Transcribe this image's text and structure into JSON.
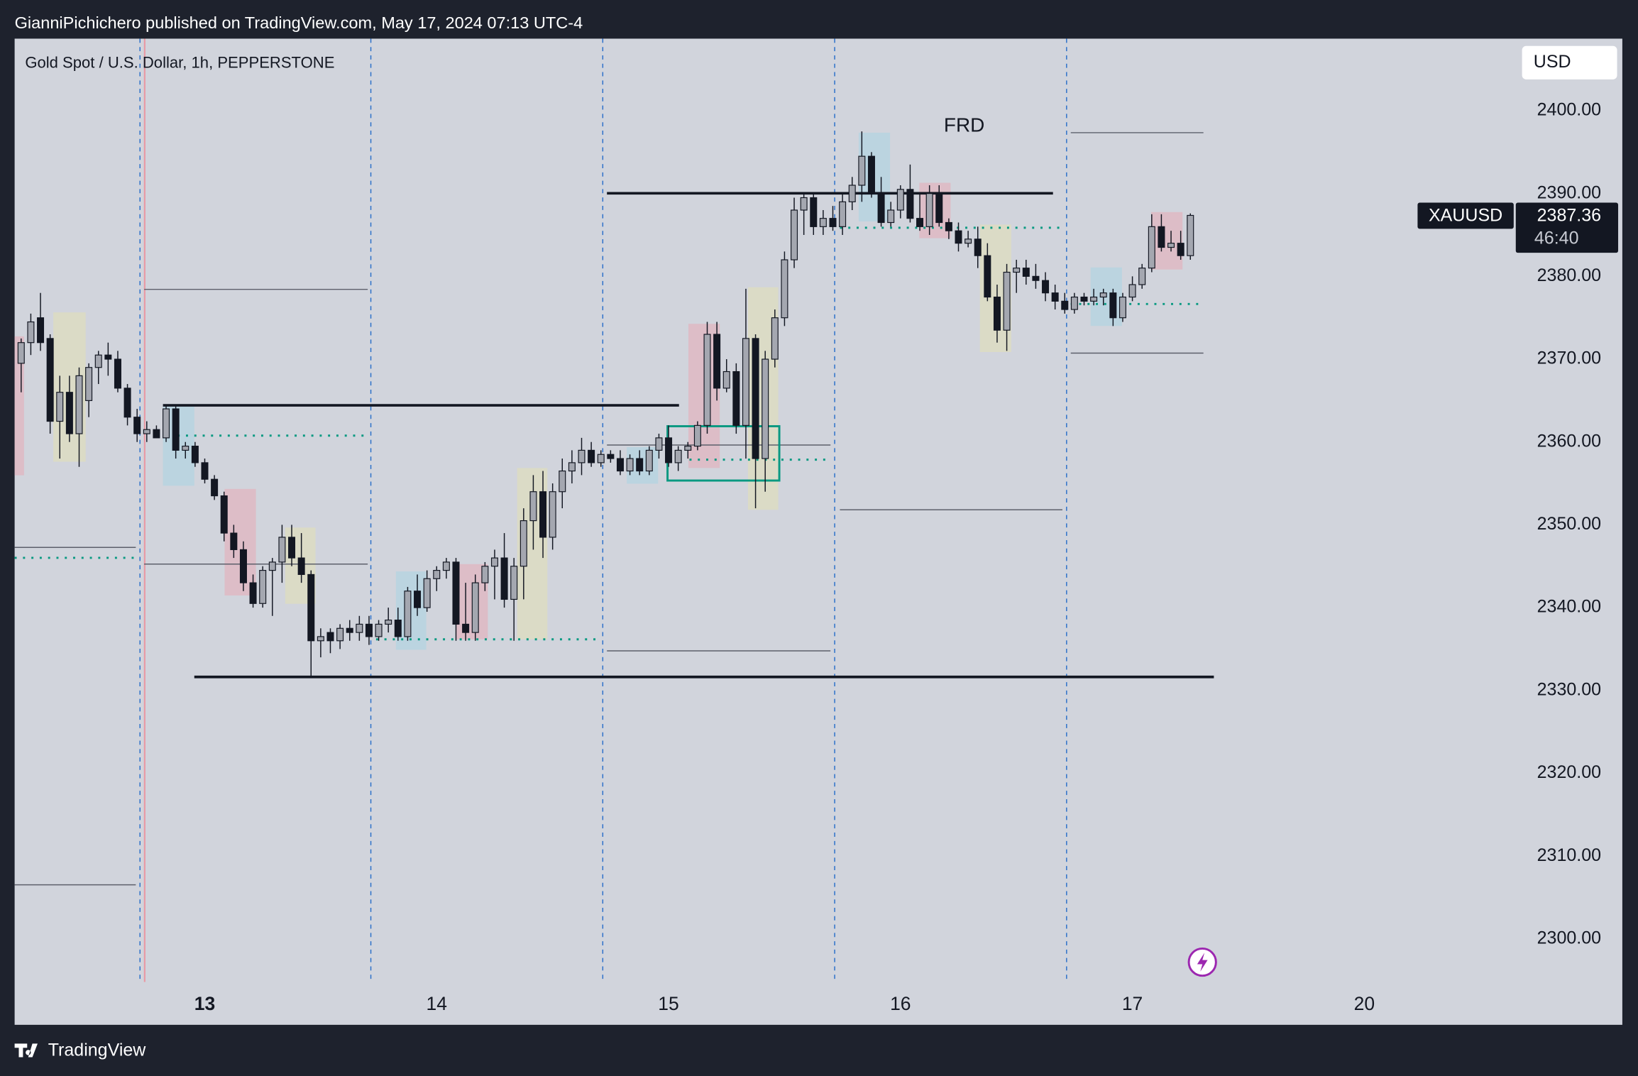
{
  "page": {
    "byline": "GianniPichichero published on TradingView.com, May 17, 2024 07:13 UTC-4",
    "brand": "TradingView"
  },
  "chart_data": {
    "type": "candlestick",
    "title": "Gold Spot / U.S. Dollar, 1h, PEPPERSTONE",
    "currency": "USD",
    "symbol": "XAUUSD",
    "last_price": 2387.36,
    "countdown": "46:40",
    "annotations": [
      "FRD"
    ],
    "up_color": "#a4a7b0",
    "down_color": "#131722",
    "grid": false,
    "ylim": [
      2294.8,
      2408.7
    ],
    "yticks": [
      {
        "value": 2300,
        "label": "2300.00"
      },
      {
        "value": 2310,
        "label": "2310.00"
      },
      {
        "value": 2320,
        "label": "2320.00"
      },
      {
        "value": 2330,
        "label": "2330.00"
      },
      {
        "value": 2340,
        "label": "2340.00"
      },
      {
        "value": 2350,
        "label": "2350.00"
      },
      {
        "value": 2360,
        "label": "2360.00"
      },
      {
        "value": 2370,
        "label": "2370.00"
      },
      {
        "value": 2380,
        "label": "2380.00"
      },
      {
        "value": 2390,
        "label": "2390.00"
      },
      {
        "value": 2400,
        "label": "2400.00"
      }
    ],
    "categories": [
      null,
      null,
      null,
      null,
      null,
      null,
      null,
      null,
      null,
      null,
      null,
      null,
      null,
      null,
      null,
      null,
      null,
      null,
      null,
      "13",
      null,
      null,
      null,
      null,
      null,
      null,
      null,
      null,
      null,
      null,
      null,
      null,
      null,
      null,
      null,
      null,
      null,
      null,
      null,
      null,
      null,
      null,
      null,
      "14",
      null,
      null,
      null,
      null,
      null,
      null,
      null,
      null,
      null,
      null,
      null,
      null,
      null,
      null,
      null,
      null,
      null,
      null,
      null,
      null,
      null,
      null,
      null,
      "15",
      null,
      null,
      null,
      null,
      null,
      null,
      null,
      null,
      null,
      null,
      null,
      null,
      null,
      null,
      null,
      null,
      null,
      null,
      null,
      null,
      null,
      null,
      null,
      "16",
      null,
      null,
      null,
      null,
      null,
      null,
      null,
      null,
      null,
      null,
      null,
      null,
      null,
      null,
      null,
      null,
      null,
      null,
      null,
      null,
      null,
      null,
      null,
      "17",
      null,
      null,
      null,
      null,
      null,
      null,
      null,
      null,
      null,
      null,
      null,
      null,
      null,
      null,
      null,
      null,
      null,
      null,
      null,
      null,
      null,
      null,
      null,
      "20"
    ],
    "open": [
      2369.5,
      2372,
      2375,
      2372.5,
      2362.5,
      2366,
      2361,
      2365,
      2369,
      2370.5,
      2370,
      2366.5,
      2363,
      2361,
      2361.5,
      2360.5,
      2364,
      2359,
      2359.5,
      2357.5,
      2355.5,
      2353.5,
      2349,
      2347,
      2343,
      2340.5,
      2344.5,
      2345.5,
      2348.5,
      2346,
      2344,
      2336,
      2337,
      2336,
      2337.5,
      2337,
      2338,
      2336.5,
      2338,
      2338.5,
      2336.5,
      2342,
      2340,
      2343.5,
      2344.5,
      2345.5,
      2338,
      2337,
      2343,
      2345,
      2346,
      2341,
      2345,
      2350.5,
      2354,
      2348.5,
      2354,
      2356.5,
      2357.5,
      2359,
      2357.5,
      2358.5,
      2358,
      2356.5,
      2358,
      2356.5,
      2359,
      2360.5,
      2357.5,
      2359,
      2359.5,
      2362,
      2373,
      2366.5,
      2368.5,
      2362,
      2372.5,
      2358,
      2370,
      2375,
      2382,
      2388,
      2389.5,
      2386,
      2387,
      2386,
      2389,
      2391,
      2394.5,
      2390,
      2386.5,
      2388,
      2390.5,
      2387,
      2386,
      2390,
      2386.5,
      2385.5,
      2384,
      2384.5,
      2382.5,
      2377.5,
      2373.5,
      2380.5,
      2381,
      2380,
      2379.5,
      2378,
      2377,
      2376,
      2377.5,
      2377,
      2377.5,
      2378,
      2375,
      2377.5,
      2379,
      2381,
      2386,
      2383.5,
      2384,
      2382.5,
      null,
      null,
      null,
      null,
      null,
      null,
      null,
      null,
      null,
      null,
      null,
      null,
      null,
      null,
      null,
      null,
      null,
      null
    ],
    "high": [
      2372.5,
      2375.5,
      2378,
      2373,
      2368,
      2368,
      2369,
      2369.5,
      2371,
      2372,
      2371,
      2367,
      2364,
      2362.5,
      2362,
      2364.5,
      2364.5,
      2360,
      2360,
      2358,
      2356,
      2354,
      2350,
      2348,
      2344,
      2345,
      2346,
      2350,
      2350,
      2349,
      2344.5,
      2337.5,
      2337.5,
      2338,
      2338.5,
      2339,
      2339,
      2338.5,
      2340,
      2340,
      2342.5,
      2344,
      2344.5,
      2345,
      2346,
      2346,
      2343,
      2344,
      2345.5,
      2347,
      2349,
      2346,
      2352,
      2356,
      2356.5,
      2355,
      2358,
      2359,
      2360.5,
      2360,
      2359,
      2359,
      2359,
      2358.5,
      2359,
      2359.5,
      2361,
      2362,
      2359.5,
      2360,
      2362.5,
      2374.5,
      2374.5,
      2370,
      2369.5,
      2378.5,
      2373,
      2371,
      2376,
      2383,
      2389.5,
      2390,
      2390,
      2388,
      2388.5,
      2390,
      2392,
      2397.5,
      2395,
      2392,
      2389,
      2391,
      2393.5,
      2390,
      2391,
      2391,
      2387,
      2386.5,
      2385.5,
      2386,
      2384,
      2379,
      2381.5,
      2382,
      2382,
      2381.5,
      2380.5,
      2379,
      2378,
      2378,
      2378,
      2378.5,
      2378.5,
      2378.5,
      2378,
      2380,
      2381.5,
      2387.5,
      2387.5,
      2385.5,
      2385.5,
      2387.6,
      null,
      null,
      null,
      null,
      null,
      null,
      null,
      null,
      null,
      null,
      null,
      null,
      null,
      null,
      null,
      null,
      null,
      null
    ],
    "low": [
      2366,
      2370.5,
      2371,
      2361,
      2358,
      2360,
      2357,
      2363,
      2367,
      2368,
      2366,
      2362,
      2360,
      2360,
      2360.5,
      2360,
      2358,
      2358,
      2357,
      2355,
      2353,
      2348,
      2346,
      2342,
      2340,
      2340,
      2339,
      2343,
      2345,
      2343,
      2331.5,
      2334,
      2334.5,
      2335,
      2336,
      2336,
      2335.5,
      2336,
      2337,
      2336,
      2336,
      2339,
      2339.5,
      2342,
      2343.5,
      2336,
      2336,
      2336,
      2342,
      2341,
      2340,
      2336,
      2341,
      2347,
      2346,
      2347,
      2352,
      2355,
      2356,
      2357,
      2357,
      2357.5,
      2356,
      2356,
      2356,
      2356,
      2358,
      2357,
      2356.5,
      2358,
      2359,
      2361,
      2365,
      2366,
      2361,
      2358,
      2352,
      2354,
      2369,
      2374,
      2381,
      2385,
      2385,
      2385,
      2385.5,
      2385,
      2388,
      2389,
      2389.5,
      2386,
      2386,
      2387,
      2386.5,
      2385.5,
      2385,
      2386,
      2384.5,
      2383,
      2383.5,
      2381,
      2377,
      2372,
      2371,
      2378,
      2379,
      2378.5,
      2377,
      2376,
      2375.5,
      2375.5,
      2376.5,
      2376.5,
      2376.5,
      2374,
      2374.5,
      2377,
      2378.5,
      2380.5,
      2383,
      2383,
      2382,
      2382,
      null,
      null,
      null,
      null,
      null,
      null,
      null,
      null,
      null,
      null,
      null,
      null,
      null,
      null,
      null,
      null,
      null,
      null
    ],
    "close": [
      2372,
      2374.5,
      2372,
      2362.5,
      2366,
      2361,
      2368,
      2369,
      2370.5,
      2370,
      2366.5,
      2363,
      2361,
      2361.5,
      2360.5,
      2364,
      2359,
      2359.5,
      2357.5,
      2355.5,
      2353.5,
      2349,
      2347,
      2343,
      2340.5,
      2344.5,
      2345.5,
      2348.5,
      2346,
      2344,
      2336,
      2336.5,
      2336,
      2337.5,
      2337,
      2338,
      2336.5,
      2338,
      2338.5,
      2336.5,
      2342,
      2340,
      2343.5,
      2344.5,
      2345.5,
      2338,
      2337,
      2343,
      2345,
      2346,
      2341,
      2345,
      2350.5,
      2354,
      2348.5,
      2354,
      2356.5,
      2357.5,
      2359,
      2357.5,
      2358.5,
      2358,
      2356.5,
      2358,
      2356.5,
      2359,
      2360.5,
      2357.5,
      2359,
      2359.5,
      2362,
      2373,
      2366.5,
      2368.5,
      2362,
      2372.5,
      2358,
      2370,
      2375,
      2382,
      2388,
      2389.5,
      2386,
      2387,
      2386,
      2389,
      2391,
      2394.5,
      2390,
      2386.5,
      2388,
      2390.5,
      2387,
      2386,
      2390,
      2386.5,
      2385.5,
      2384,
      2384.5,
      2382.5,
      2377.5,
      2373.5,
      2380.5,
      2381,
      2380,
      2379.5,
      2378,
      2377,
      2376,
      2377.5,
      2377,
      2377.5,
      2378,
      2375,
      2377.5,
      2379,
      2381,
      2386,
      2383.5,
      2384,
      2382.5,
      2387.36,
      null,
      null,
      null,
      null,
      null,
      null,
      null,
      null,
      null,
      null,
      null,
      null,
      null,
      null,
      null,
      null,
      null,
      null
    ]
  }
}
